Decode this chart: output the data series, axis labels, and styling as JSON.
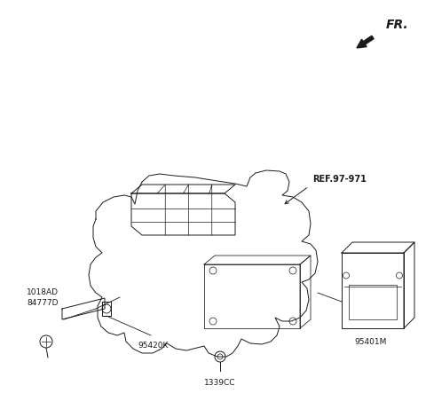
{
  "bg_color": "#ffffff",
  "line_color": "#1a1a1a",
  "fig_width": 4.8,
  "fig_height": 4.7,
  "dpi": 100,
  "fr_label": "FR.",
  "labels": {
    "ref": "REF.97-971",
    "part1018": "1018AD",
    "part84777": "84777D",
    "part95420": "95420K",
    "part1339": "1339CC",
    "part95401": "95401M"
  },
  "font_size": 6.5,
  "lw": 0.7
}
